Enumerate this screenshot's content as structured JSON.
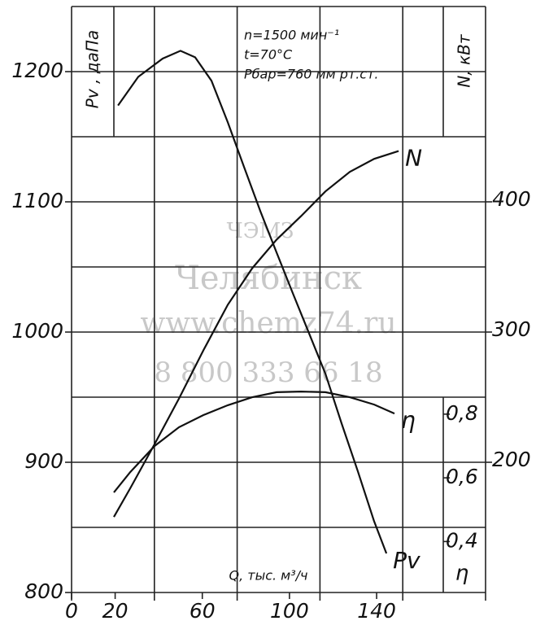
{
  "chart_data": {
    "type": "line",
    "title_lines": [
      "n=1500 мин⁻¹",
      "t=70°C",
      "Рбар=760 мм рт.ст."
    ],
    "xlabel": "Q,  тыс.  м³/ч",
    "ylabel": "Pv ,  даПа",
    "y2label": "N,  кВт",
    "y3label": "η",
    "watermark": [
      "ЧЭМЗ",
      "Челябинск",
      "www.chemz74.ru",
      "8 800 333 66 18"
    ],
    "xlim": [
      0,
      190
    ],
    "xticks": [
      0,
      20,
      60,
      100,
      140
    ],
    "xgrid": [
      0,
      38,
      76,
      114,
      152,
      190
    ],
    "ylim": [
      800,
      1250
    ],
    "yticks": [
      800,
      900,
      1000,
      1100,
      1200
    ],
    "ygrid": [
      800,
      850,
      900,
      950,
      1000,
      1050,
      1100,
      1150,
      1200,
      1250
    ],
    "y2lim": [
      100,
      550
    ],
    "y2ticks": [
      200,
      300,
      400
    ],
    "y3lim": [
      0.24,
      2.08
    ],
    "y3ticks": [
      {
        "value": 0.4,
        "label": "0,4"
      },
      {
        "value": 0.6,
        "label": "0,6"
      },
      {
        "value": 0.8,
        "label": "0,8"
      }
    ],
    "grid": true,
    "series": [
      {
        "name": "Pv",
        "color": "#111111",
        "axis": "y",
        "x": [
          21.3,
          30.6,
          41.8,
          50,
          56.7,
          64.2,
          71.7,
          79.1,
          86.6,
          94.1,
          101.5,
          109,
          116.5,
          123.9,
          131.4,
          138.8,
          144.5
        ],
        "values": [
          1174,
          1196,
          1210,
          1216,
          1211,
          1193,
          1161,
          1127,
          1093,
          1061,
          1030,
          999,
          968,
          930,
          893,
          855,
          830
        ]
      },
      {
        "name": "N",
        "color": "#111111",
        "axis": "y2",
        "x": [
          19.4,
          26.9,
          38.1,
          49.3,
          60.5,
          71.7,
          82.9,
          94.1,
          105.3,
          116.5,
          127.7,
          138.9,
          150.1
        ],
        "values": [
          158,
          180,
          214,
          249,
          286,
          321,
          349,
          371,
          389,
          408,
          423,
          433,
          439
        ]
      },
      {
        "name": "η",
        "color": "#111111",
        "axis": "y3",
        "x": [
          19.4,
          26.9,
          38.1,
          49.3,
          60.5,
          71.7,
          82.9,
          94.1,
          105.3,
          116.5,
          127.7,
          138.9,
          148.2
        ],
        "values": [
          0.554,
          0.618,
          0.7,
          0.759,
          0.797,
          0.828,
          0.853,
          0.869,
          0.871,
          0.869,
          0.853,
          0.83,
          0.802
        ]
      }
    ]
  }
}
